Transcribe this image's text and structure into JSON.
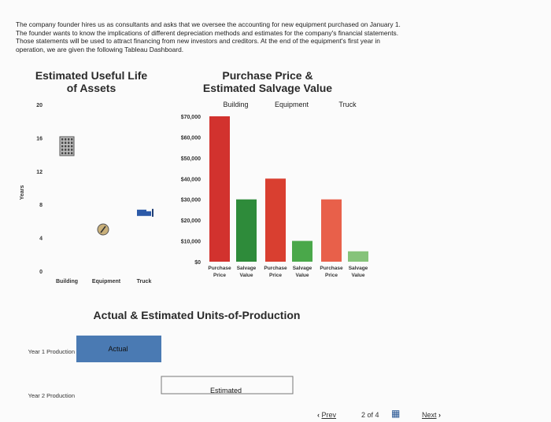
{
  "intro": {
    "lines": [
      "The company founder hires us as consultants and asks that we oversee the accounting for new equipment purchased on January 1.",
      "The founder wants to know the implications of different depreciation methods and estimates for the company's financial statements.",
      "Those statements will be used to attract financing from new investors and creditors. At the end of the equipment's first year in",
      "operation, we are given the following Tableau Dashboard."
    ]
  },
  "chart_data": [
    {
      "type": "scatter",
      "title": "Estimated Useful Life of Assets",
      "ylabel": "Years",
      "ylim": [
        0,
        20
      ],
      "yticks": [
        0,
        4,
        8,
        12,
        16,
        20
      ],
      "categories": [
        "Building",
        "Equipment",
        "Truck"
      ],
      "values": [
        15,
        5,
        7
      ],
      "icons": [
        "building-icon",
        "tools-icon",
        "truck-icon"
      ]
    },
    {
      "type": "bar",
      "title": "Purchase Price & Estimated Salvage Value",
      "groups": [
        "Building",
        "Equipment",
        "Truck"
      ],
      "categories": [
        "Purchase Price",
        "Salvage Value",
        "Purchase Price",
        "Salvage Value",
        "Purchase Price",
        "Salvage Value"
      ],
      "values": [
        70000,
        30000,
        40000,
        10000,
        30000,
        5000
      ],
      "colors": [
        "#d2322e",
        "#2e8b3a",
        "#d93f30",
        "#4aa84a",
        "#e8604a",
        "#86c37a"
      ],
      "ylim": [
        0,
        70000
      ],
      "yticks": [
        "$0",
        "$10,000",
        "$20,000",
        "$30,000",
        "$40,000",
        "$50,000",
        "$60,000",
        "$70,000"
      ]
    }
  ],
  "units_chart": {
    "title": "Actual & Estimated Units-of-Production",
    "rows": [
      "Year 1 Production",
      "Year 2 Production"
    ],
    "actual_label": "Actual",
    "estimated_label": "Estimated"
  },
  "footer": {
    "prev": "Prev",
    "page": "2 of 4",
    "next": "Next"
  }
}
